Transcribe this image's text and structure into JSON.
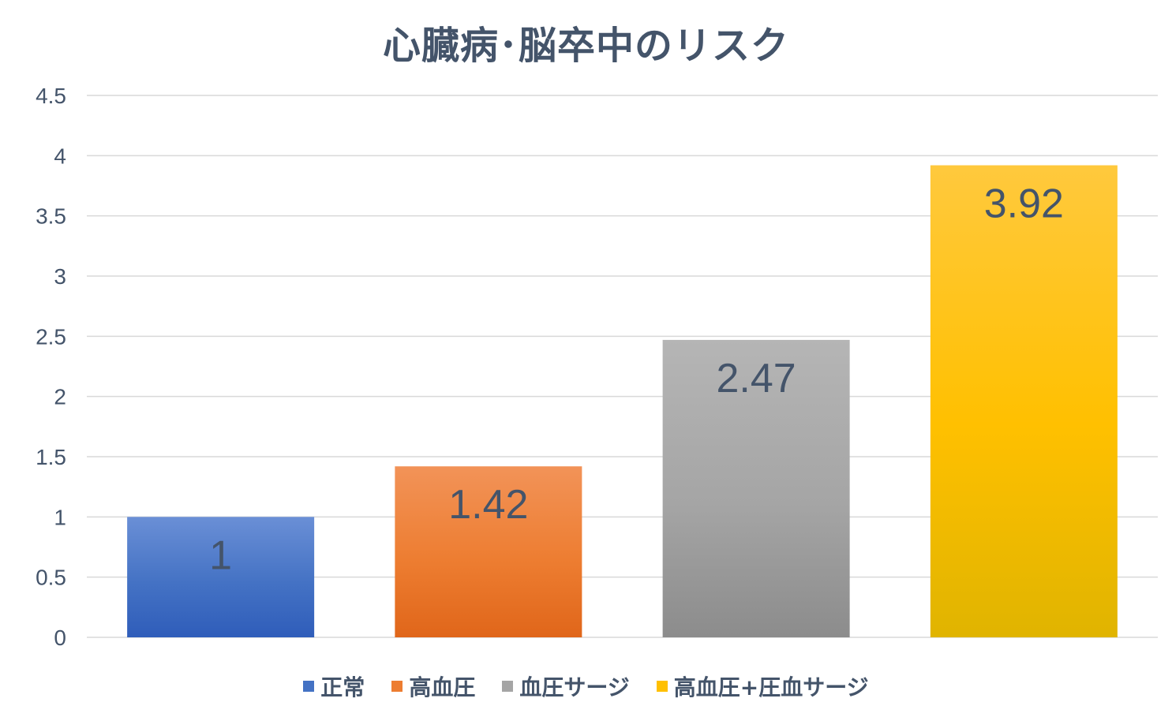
{
  "chart_data": {
    "type": "bar",
    "title": "心臓病･脳卒中のリスク",
    "categories": [
      "正常",
      "高血圧",
      "血圧サージ",
      "高血圧+圧血サージ"
    ],
    "values": [
      1,
      1.42,
      2.47,
      3.92
    ],
    "value_labels": [
      "1",
      "1.42",
      "2.47",
      "3.92"
    ],
    "ylim": [
      0,
      4.5
    ],
    "yticks": [
      "0",
      "0.5",
      "1",
      "1.5",
      "2",
      "2.5",
      "3",
      "3.5",
      "4",
      "4.5"
    ],
    "grid": true,
    "legend_position": "bottom",
    "colors": [
      "#4472C4",
      "#ED7D31",
      "#A5A5A5",
      "#FFC000"
    ],
    "colors_dark": [
      "#2F5DBA",
      "#E0661A",
      "#8C8C8C",
      "#E0B400"
    ],
    "colors_light": [
      "#6A8FD6",
      "#F29358",
      "#B5B5B5",
      "#FFC93D"
    ]
  }
}
